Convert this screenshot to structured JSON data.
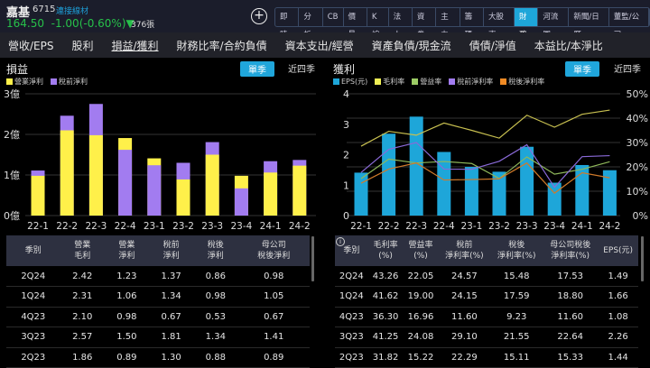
{
  "stock": {
    "name": "嘉基",
    "code": "6715",
    "category": "連接線材",
    "price": "164.50",
    "change": "-1.00(-0.60%)",
    "arrow": "▼",
    "volume": "376張"
  },
  "top_buttons": [
    "即時",
    "分析",
    "CB",
    "價量",
    "K線",
    "法人",
    "資券",
    "主力",
    "籌碼",
    "大股東",
    "財務",
    "河流圖",
    "新聞/日曆",
    "董監/公司"
  ],
  "active_top": "財務",
  "tabs": [
    "營收/EPS",
    "股利",
    "損益/獲利",
    "財務比率/合約負債",
    "資本支出/經營",
    "資產負債/現金流",
    "債債/淨值",
    "本益比/本淨比"
  ],
  "left": {
    "title": "損益",
    "seg_on": "單季",
    "seg_off": "近四季",
    "legend": [
      {
        "label": "營業淨利",
        "color": "#fff04a"
      },
      {
        "label": "稅前淨利",
        "color": "#a27cf0"
      }
    ],
    "table": {
      "headers": [
        [
          "季別",
          ""
        ],
        [
          "營業",
          "毛利"
        ],
        [
          "營業",
          "淨利"
        ],
        [
          "稅前",
          "淨利"
        ],
        [
          "稅後",
          "淨利"
        ],
        [
          "母公司",
          "稅後淨利"
        ]
      ],
      "rows": [
        [
          "2Q24",
          "2.42",
          "1.23",
          "1.37",
          "0.86",
          "0.98"
        ],
        [
          "1Q24",
          "2.31",
          "1.06",
          "1.34",
          "0.98",
          "1.05"
        ],
        [
          "4Q23",
          "2.10",
          "0.98",
          "0.67",
          "0.53",
          "0.67"
        ],
        [
          "3Q23",
          "2.57",
          "1.50",
          "1.81",
          "1.34",
          "1.41"
        ],
        [
          "2Q23",
          "1.86",
          "0.89",
          "1.30",
          "0.88",
          "0.89"
        ]
      ]
    }
  },
  "right": {
    "title": "獲利",
    "seg_on": "單季",
    "seg_off": "近四季",
    "legend": [
      {
        "label": "EPS(元)",
        "color": "#1ea6d9"
      },
      {
        "label": "毛利率",
        "color": "#eeee55"
      },
      {
        "label": "營益率",
        "color": "#9ccc65"
      },
      {
        "label": "稅前淨利率",
        "color": "#a27cf0"
      },
      {
        "label": "稅後淨利率",
        "color": "#f08a24"
      }
    ],
    "table": {
      "headers": [
        [
          "季別",
          ""
        ],
        [
          "毛利率",
          "(%)"
        ],
        [
          "營益率",
          "(%)"
        ],
        [
          "稅前",
          "淨利率(%)"
        ],
        [
          "稅後",
          "淨利率(%)"
        ],
        [
          "母公司稅後",
          "淨利率(%)"
        ],
        [
          "EPS(元)",
          ""
        ]
      ],
      "rows": [
        [
          "2Q24",
          "43.26",
          "22.05",
          "24.57",
          "15.48",
          "17.53",
          "1.49"
        ],
        [
          "1Q24",
          "41.62",
          "19.00",
          "24.15",
          "17.59",
          "18.80",
          "1.66"
        ],
        [
          "4Q23",
          "36.30",
          "16.96",
          "11.60",
          "9.23",
          "11.60",
          "1.08"
        ],
        [
          "3Q23",
          "41.25",
          "24.08",
          "29.10",
          "21.55",
          "22.64",
          "2.26"
        ],
        [
          "2Q23",
          "31.82",
          "15.22",
          "22.29",
          "15.11",
          "15.33",
          "1.44"
        ]
      ]
    }
  },
  "chart_data": [
    {
      "type": "bar",
      "title": "損益",
      "categories": [
        "22-1",
        "22-2",
        "22-3",
        "22-4",
        "23-1",
        "23-2",
        "23-3",
        "23-4",
        "24-1",
        "24-2"
      ],
      "ylim": [
        0,
        3
      ],
      "yticks": [
        "0億",
        "1億",
        "2億",
        "3億"
      ],
      "series": [
        {
          "name": "營業淨利",
          "color": "#fff04a",
          "values": [
            0.98,
            2.1,
            1.98,
            1.91,
            1.41,
            0.89,
            1.5,
            0.98,
            1.06,
            1.23
          ]
        },
        {
          "name": "稅前淨利",
          "color": "#a27cf0",
          "values": [
            1.11,
            2.46,
            2.75,
            1.62,
            1.24,
            1.3,
            1.81,
            0.67,
            1.34,
            1.37
          ]
        }
      ]
    },
    {
      "type": "bar+line",
      "title": "獲利",
      "categories": [
        "22-1",
        "22-2",
        "22-3",
        "22-4",
        "23-1",
        "23-2",
        "23-3",
        "23-4",
        "24-1",
        "24-2"
      ],
      "ylim": [
        0,
        4
      ],
      "y2lim": [
        0,
        50
      ],
      "yticks": [
        "0",
        "1",
        "2",
        "3",
        "4"
      ],
      "y2ticks": [
        "0%",
        "10%",
        "20%",
        "30%",
        "40%",
        "50%"
      ],
      "series": [
        {
          "name": "EPS(元)",
          "type": "bar",
          "color": "#1ea6d9",
          "values": [
            1.41,
            2.69,
            3.25,
            2.09,
            1.6,
            1.44,
            2.26,
            1.08,
            1.66,
            1.49
          ]
        },
        {
          "name": "毛利率",
          "type": "line",
          "color": "#c8c050",
          "values": [
            28.5,
            34.6,
            33.0,
            38.0,
            35.0,
            31.8,
            41.2,
            36.3,
            41.6,
            43.3
          ]
        },
        {
          "name": "營益率",
          "type": "line",
          "color": "#8fb85a",
          "values": [
            15.2,
            23.2,
            21.6,
            22.2,
            21.4,
            15.2,
            24.1,
            17.0,
            19.0,
            22.1
          ]
        },
        {
          "name": "稅前淨利率",
          "type": "line",
          "color": "#8a6ad8",
          "values": [
            17.7,
            27.2,
            30.0,
            19.1,
            19.0,
            22.3,
            29.1,
            11.6,
            24.2,
            24.6
          ]
        },
        {
          "name": "稅後淨利率",
          "type": "line",
          "color": "#d07a2a",
          "values": [
            13.3,
            19.1,
            21.6,
            14.6,
            14.8,
            15.1,
            21.6,
            9.2,
            17.6,
            15.5
          ]
        }
      ]
    }
  ]
}
